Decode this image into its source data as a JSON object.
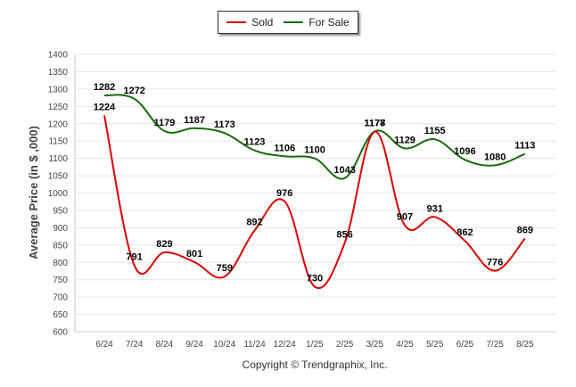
{
  "chart_data": {
    "type": "line",
    "title": "",
    "xlabel": "",
    "ylabel": "Average Price (in $ ,000)",
    "ylim": [
      600,
      1400
    ],
    "yticks": [
      600,
      650,
      700,
      750,
      800,
      850,
      900,
      950,
      1000,
      1050,
      1100,
      1150,
      1200,
      1250,
      1300,
      1350,
      1400
    ],
    "grid": true,
    "legend_position": "top-center",
    "categories": [
      "6/24",
      "7/24",
      "8/24",
      "9/24",
      "10/24",
      "11/24",
      "12/24",
      "1/25",
      "2/25",
      "3/25",
      "4/25",
      "5/25",
      "6/25",
      "7/25",
      "8/25"
    ],
    "series": [
      {
        "name": "Sold",
        "color": "#e00000",
        "values": [
          1224,
          791,
          829,
          801,
          759,
          892,
          976,
          730,
          856,
          1177,
          907,
          931,
          862,
          776,
          869
        ]
      },
      {
        "name": "For Sale",
        "color": "#1a6b0e",
        "values": [
          1282,
          1272,
          1179,
          1187,
          1173,
          1123,
          1106,
          1100,
          1043,
          1178,
          1129,
          1155,
          1096,
          1080,
          1113
        ]
      }
    ]
  },
  "legend": {
    "sold": "Sold",
    "for_sale": "For Sale"
  },
  "footer": {
    "copyright": "Copyright © Trendgraphix, Inc."
  }
}
